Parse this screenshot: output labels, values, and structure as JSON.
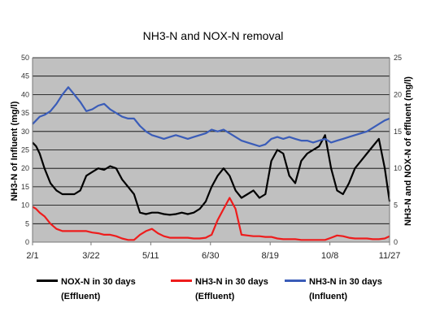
{
  "chart_data": {
    "type": "line",
    "title": "NH3-N and NOX-N removal",
    "ylabel_left": "NH3-N of Influent (mg/l)",
    "ylabel_right": "NH3-N and NOX-N of effluent (mg/l)",
    "ylim_left": [
      0,
      50
    ],
    "ylim_right": [
      0,
      25
    ],
    "yticks_left": [
      "0",
      "5",
      "10",
      "15",
      "20",
      "25",
      "30",
      "35",
      "40",
      "45",
      "50"
    ],
    "yticks_right": [
      "0",
      "5",
      "10",
      "15",
      "20",
      "25"
    ],
    "xlim": [
      0,
      299
    ],
    "xticks": [
      {
        "label": "2/1",
        "x": 0
      },
      {
        "label": "3/22",
        "x": 49
      },
      {
        "label": "5/11",
        "x": 99
      },
      {
        "label": "6/30",
        "x": 149
      },
      {
        "label": "8/19",
        "x": 199
      },
      {
        "label": "10/8",
        "x": 249
      },
      {
        "label": "11/27",
        "x": 299
      }
    ],
    "grid": "horizontal",
    "legend_position": "bottom",
    "series": [
      {
        "name": "NOX-N in 30 days (Effluent)",
        "legend_lines": [
          "NOX-N in 30 days",
          "(Effluent)"
        ],
        "color": "#000000",
        "axis": "right",
        "x": [
          0,
          3,
          6,
          10,
          15,
          20,
          25,
          30,
          35,
          40,
          45,
          50,
          55,
          60,
          65,
          70,
          75,
          80,
          85,
          90,
          95,
          100,
          105,
          110,
          115,
          120,
          125,
          130,
          135,
          140,
          145,
          150,
          155,
          160,
          165,
          170,
          175,
          180,
          185,
          190,
          195,
          200,
          205,
          210,
          215,
          220,
          225,
          230,
          235,
          240,
          245,
          250,
          255,
          260,
          265,
          270,
          275,
          280,
          285,
          290,
          295,
          299
        ],
        "y": [
          13.5,
          13.0,
          12.0,
          10.0,
          8.0,
          7.0,
          6.5,
          6.5,
          6.5,
          7.0,
          9.0,
          9.5,
          10.0,
          9.8,
          10.3,
          10.0,
          8.5,
          7.5,
          6.5,
          4.0,
          3.8,
          4.0,
          4.0,
          3.8,
          3.7,
          3.8,
          4.0,
          3.8,
          4.0,
          4.5,
          5.5,
          7.5,
          9.0,
          10.0,
          9.0,
          7.0,
          6.0,
          6.5,
          7.0,
          6.0,
          6.5,
          11.0,
          12.5,
          12.0,
          9.0,
          8.0,
          11.0,
          12.0,
          12.5,
          13.0,
          14.5,
          10.0,
          7.0,
          6.5,
          8.0,
          10.0,
          11.0,
          12.0,
          13.0,
          14.0,
          10.0,
          5.5
        ]
      },
      {
        "name": "NH3-N in 30 days (Effluent)",
        "legend_lines": [
          "NH3-N in 30 days",
          "(Effluent)"
        ],
        "color": "#ee1c1c",
        "axis": "right",
        "x": [
          0,
          3,
          6,
          10,
          15,
          20,
          25,
          30,
          35,
          40,
          45,
          50,
          55,
          60,
          65,
          70,
          75,
          80,
          85,
          90,
          95,
          100,
          105,
          110,
          115,
          120,
          125,
          130,
          135,
          140,
          145,
          150,
          155,
          160,
          165,
          170,
          175,
          180,
          185,
          190,
          195,
          200,
          205,
          210,
          215,
          220,
          225,
          230,
          235,
          240,
          245,
          250,
          255,
          260,
          265,
          270,
          275,
          280,
          285,
          290,
          295,
          299
        ],
        "y": [
          4.8,
          4.5,
          4.0,
          3.5,
          2.5,
          1.8,
          1.5,
          1.5,
          1.5,
          1.5,
          1.5,
          1.3,
          1.2,
          1.0,
          1.0,
          0.8,
          0.5,
          0.3,
          0.3,
          1.0,
          1.5,
          1.8,
          1.2,
          0.8,
          0.6,
          0.6,
          0.6,
          0.6,
          0.5,
          0.5,
          0.6,
          1.0,
          3.0,
          4.5,
          6.0,
          4.5,
          1.0,
          0.9,
          0.8,
          0.8,
          0.7,
          0.7,
          0.5,
          0.4,
          0.4,
          0.4,
          0.3,
          0.3,
          0.3,
          0.3,
          0.3,
          0.6,
          0.9,
          0.8,
          0.6,
          0.5,
          0.5,
          0.5,
          0.4,
          0.4,
          0.5,
          0.8
        ]
      },
      {
        "name": "NH3-N in 30 days (Influent)",
        "legend_lines": [
          "NH3-N in 30 days",
          "(Influent)"
        ],
        "color": "#3a5cb8",
        "axis": "left",
        "x": [
          0,
          3,
          6,
          10,
          15,
          20,
          25,
          30,
          35,
          40,
          45,
          50,
          55,
          60,
          65,
          70,
          75,
          80,
          85,
          90,
          95,
          100,
          105,
          110,
          115,
          120,
          125,
          130,
          135,
          140,
          145,
          150,
          155,
          160,
          165,
          170,
          175,
          180,
          185,
          190,
          195,
          200,
          205,
          210,
          215,
          220,
          225,
          230,
          235,
          240,
          245,
          250,
          255,
          260,
          265,
          270,
          275,
          280,
          285,
          290,
          295,
          299
        ],
        "y": [
          32.0,
          33.0,
          34.0,
          34.5,
          35.5,
          37.5,
          40.0,
          42.0,
          40.0,
          38.0,
          35.5,
          36.0,
          37.0,
          37.5,
          36.0,
          35.0,
          34.0,
          33.5,
          33.5,
          31.5,
          30.0,
          29.0,
          28.5,
          28.0,
          28.5,
          29.0,
          28.5,
          28.0,
          28.5,
          29.0,
          29.5,
          30.5,
          30.0,
          30.5,
          29.5,
          28.5,
          27.5,
          27.0,
          26.5,
          26.0,
          26.5,
          28.0,
          28.5,
          28.0,
          28.5,
          28.0,
          27.5,
          27.5,
          27.0,
          27.5,
          28.0,
          27.0,
          27.5,
          28.0,
          28.5,
          29.0,
          29.5,
          30.0,
          31.0,
          32.0,
          33.0,
          33.5
        ]
      }
    ]
  }
}
